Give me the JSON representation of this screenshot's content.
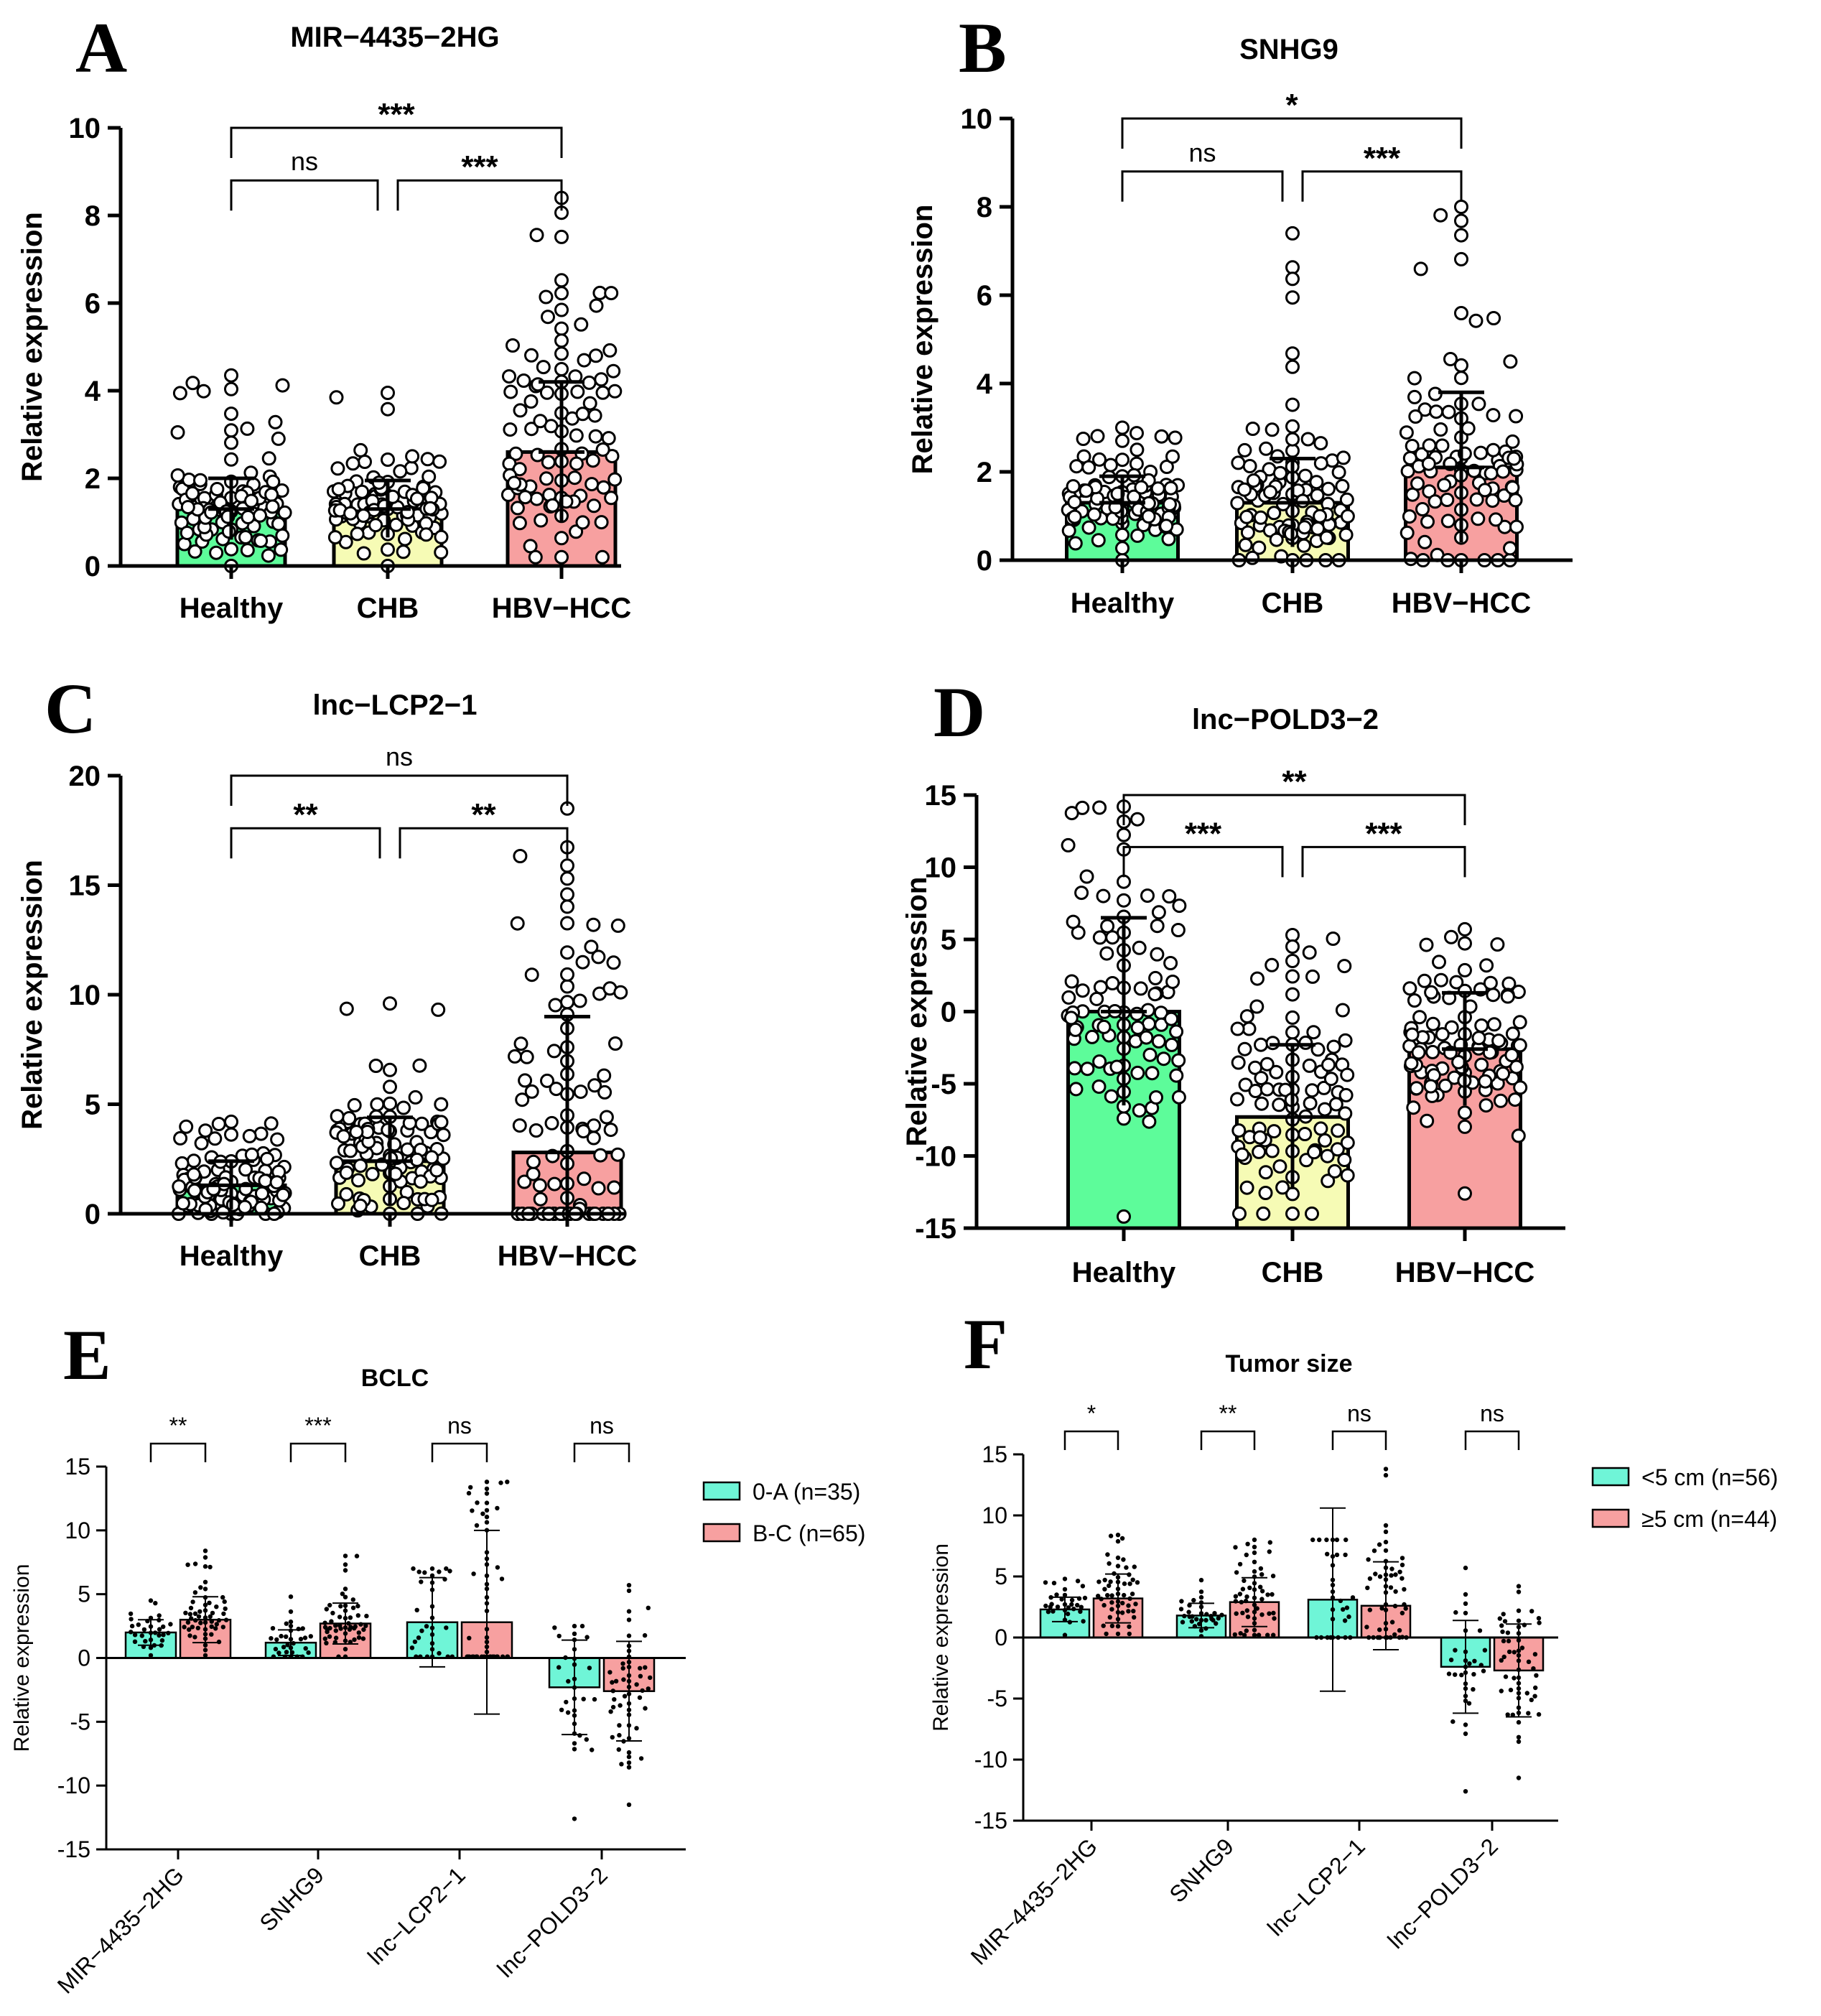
{
  "figure": {
    "panel_letters": [
      "A",
      "B",
      "C",
      "D",
      "E",
      "F"
    ]
  },
  "colors": {
    "healthy": "#5dfc9a",
    "chb": "#f6fbb5",
    "hcc": "#f7a0a0",
    "low": "#6ff5d7",
    "high": "#f7a0a0",
    "axis": "#000000"
  },
  "chart_data": [
    {
      "id": "A",
      "type": "bar",
      "title": "MIR−4435−2HG",
      "ylabel": "Relative expression",
      "xlabel": "",
      "ylim": [
        0,
        10
      ],
      "yticks": [
        0,
        2,
        4,
        6,
        8,
        10
      ],
      "categories": [
        "Healthy",
        "CHB",
        "HBV−HCC"
      ],
      "values": [
        1.3,
        1.3,
        2.6
      ],
      "errors": [
        0.7,
        0.65,
        1.6
      ],
      "point_max": [
        4.35,
        3.95,
        8.4
      ],
      "point_min": [
        0.0,
        0.0,
        0.2
      ],
      "comparisons": [
        {
          "groups": [
            0,
            1
          ],
          "label": "ns",
          "level": 1
        },
        {
          "groups": [
            1,
            2
          ],
          "label": "***",
          "level": 1
        },
        {
          "groups": [
            0,
            2
          ],
          "label": "***",
          "level": 2
        }
      ]
    },
    {
      "id": "B",
      "type": "bar",
      "title": "SNHG9",
      "ylabel": "Relative expression",
      "xlabel": "",
      "ylim": [
        0,
        10
      ],
      "yticks": [
        0,
        2,
        4,
        6,
        8,
        10
      ],
      "categories": [
        "Healthy",
        "CHB",
        "HBV−HCC"
      ],
      "values": [
        1.3,
        1.3,
        2.1
      ],
      "errors": [
        0.6,
        1.0,
        1.7
      ],
      "point_max": [
        3.0,
        7.4,
        8.0
      ],
      "point_min": [
        0.0,
        0.0,
        0.0
      ],
      "comparisons": [
        {
          "groups": [
            0,
            1
          ],
          "label": "ns",
          "level": 1
        },
        {
          "groups": [
            1,
            2
          ],
          "label": "***",
          "level": 1
        },
        {
          "groups": [
            0,
            2
          ],
          "label": "*",
          "level": 2
        }
      ]
    },
    {
      "id": "C",
      "type": "bar",
      "title": "lnc−LCP2−1",
      "ylabel": "Relative expression",
      "xlabel": "",
      "ylim": [
        0,
        20
      ],
      "yticks": [
        0,
        5,
        10,
        15,
        20
      ],
      "categories": [
        "Healthy",
        "CHB",
        "HBV−HCC"
      ],
      "values": [
        1.3,
        2.4,
        2.8
      ],
      "errors": [
        1.1,
        2.0,
        6.2
      ],
      "point_max": [
        4.2,
        9.6,
        18.5
      ],
      "point_min": [
        0.0,
        0.0,
        0.0
      ],
      "comparisons": [
        {
          "groups": [
            0,
            1
          ],
          "label": "**",
          "level": 1
        },
        {
          "groups": [
            1,
            2
          ],
          "label": "**",
          "level": 1
        },
        {
          "groups": [
            0,
            2
          ],
          "label": "ns",
          "level": 2
        }
      ]
    },
    {
      "id": "D",
      "type": "bar",
      "title": "lnc−POLD3−2",
      "ylabel": "Relative expression",
      "xlabel": "",
      "ylim": [
        -15,
        15
      ],
      "yticks": [
        -15,
        -10,
        -5,
        0,
        5,
        10,
        15
      ],
      "categories": [
        "Healthy",
        "CHB",
        "HBV−HCC"
      ],
      "values": [
        0,
        -7.3,
        -2.6
      ],
      "errors": [
        6.5,
        5.0,
        3.9
      ],
      "point_max": [
        14.2,
        5.3,
        5.7
      ],
      "point_min": [
        -14.2,
        -14.0,
        -12.6
      ],
      "comparisons": [
        {
          "groups": [
            0,
            1
          ],
          "label": "***",
          "level": 1
        },
        {
          "groups": [
            1,
            2
          ],
          "label": "***",
          "level": 1
        },
        {
          "groups": [
            0,
            2
          ],
          "label": "**",
          "level": 2
        }
      ]
    },
    {
      "id": "E",
      "type": "bar",
      "title": "BCLC",
      "ylabel": "Relative expression",
      "xlabel": "",
      "ylim": [
        -15,
        15
      ],
      "yticks": [
        -15,
        -10,
        -5,
        0,
        5,
        10,
        15
      ],
      "categories": [
        "MIR−4435−2HG",
        "SNHG9",
        "lnc−LCP2−1",
        "lnc−POLD3−2"
      ],
      "series": [
        {
          "name": "0-A (n=35)",
          "values": [
            2.0,
            1.2,
            2.8,
            -2.3
          ],
          "errors": [
            1.0,
            1.0,
            3.5,
            3.7
          ],
          "point_max": [
            4.5,
            4.8,
            7.0,
            2.5
          ],
          "point_min": [
            0.2,
            0.1,
            0.1,
            -12.6
          ]
        },
        {
          "name": "B-C (n=65)",
          "values": [
            3.0,
            2.7,
            2.8,
            -2.6
          ],
          "errors": [
            1.8,
            1.6,
            7.2,
            3.9
          ],
          "point_max": [
            8.4,
            8.0,
            13.8,
            5.7
          ],
          "point_min": [
            0.2,
            0.1,
            0.1,
            -11.5
          ]
        }
      ],
      "comparisons": [
        {
          "category": 0,
          "label": "**"
        },
        {
          "category": 1,
          "label": "***"
        },
        {
          "category": 2,
          "label": "ns"
        },
        {
          "category": 3,
          "label": "ns"
        }
      ],
      "legend": "right"
    },
    {
      "id": "F",
      "type": "bar",
      "title": "Tumor size",
      "ylabel": "Relative expression",
      "xlabel": "",
      "ylim": [
        -15,
        15
      ],
      "yticks": [
        -15,
        -10,
        -5,
        0,
        5,
        10,
        15
      ],
      "categories": [
        "MIR−4435−2HG",
        "SNHG9",
        "lnc−LCP2−1",
        "lnc−POLD3−2"
      ],
      "series": [
        {
          "name": "<5 cm (n=56)",
          "values": [
            2.3,
            1.8,
            3.1,
            -2.4
          ],
          "errors": [
            1.0,
            1.0,
            7.5,
            3.8
          ],
          "point_max": [
            4.8,
            4.7,
            8.0,
            5.7
          ],
          "point_min": [
            0.2,
            0.1,
            0.0,
            -12.6
          ]
        },
        {
          "name": "≥5 cm (n=44)",
          "values": [
            3.2,
            2.9,
            2.6,
            -2.7
          ],
          "errors": [
            2.0,
            2.0,
            3.6,
            3.8
          ],
          "point_max": [
            8.4,
            8.0,
            13.8,
            4.2
          ],
          "point_min": [
            0.3,
            0.2,
            0.0,
            -11.5
          ]
        }
      ],
      "comparisons": [
        {
          "category": 0,
          "label": "*"
        },
        {
          "category": 1,
          "label": "**"
        },
        {
          "category": 2,
          "label": "ns"
        },
        {
          "category": 3,
          "label": "ns"
        }
      ],
      "legend": "right"
    }
  ]
}
